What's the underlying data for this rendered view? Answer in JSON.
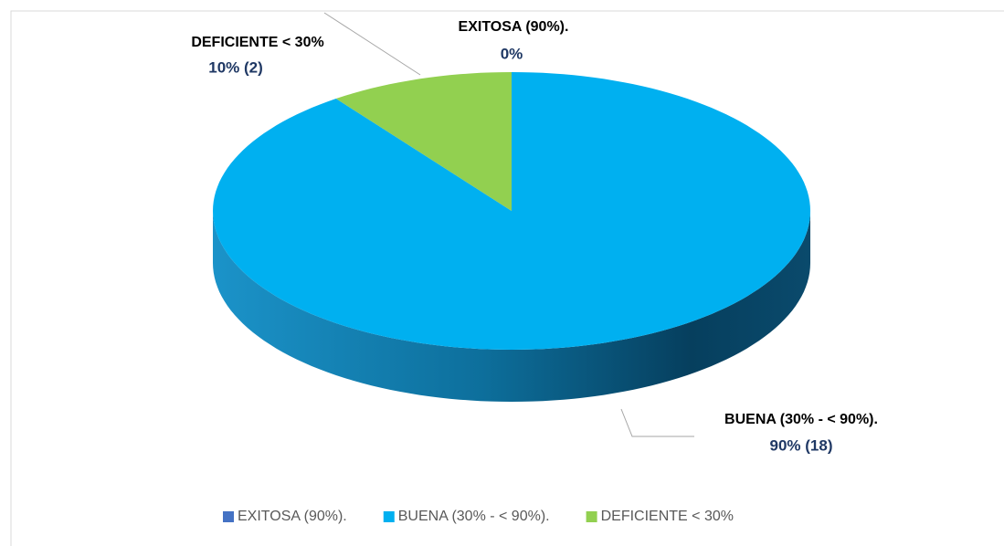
{
  "chart_data": {
    "type": "pie",
    "categories": [
      "EXITOSA (90%).",
      "BUENA (30% - < 90%).",
      "DEFICIENTE  < 30%"
    ],
    "values": [
      0,
      90,
      10
    ],
    "value_labels": [
      "0%",
      "90% (18)",
      "10% (2)"
    ],
    "colors": [
      "#4472c4",
      "#00b0f0",
      "#92d050"
    ],
    "legend": "bottom"
  }
}
